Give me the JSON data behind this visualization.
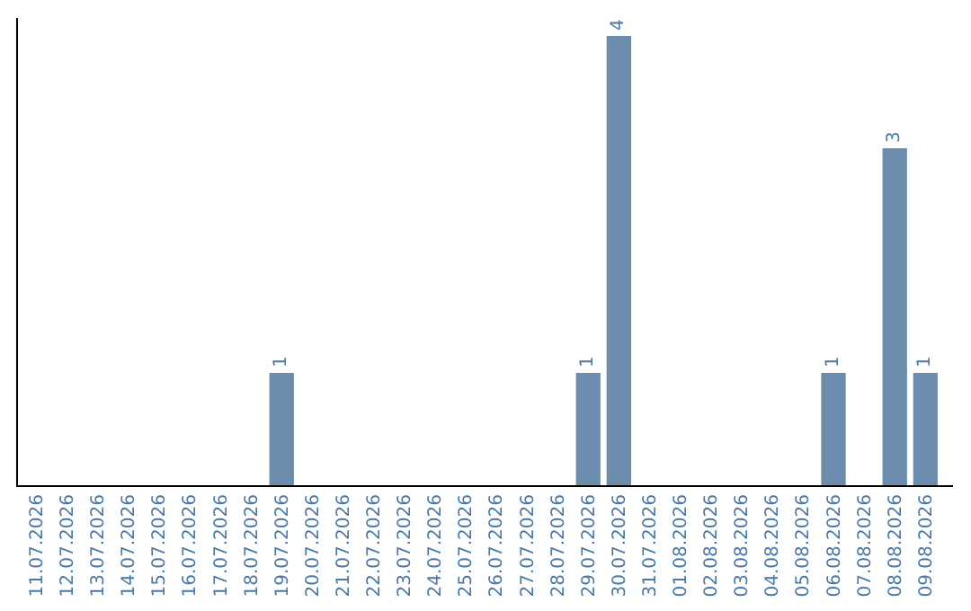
{
  "chart_data": {
    "type": "bar",
    "categories": [
      "11.07.2026",
      "12.07.2026",
      "13.07.2026",
      "14.07.2026",
      "15.07.2026",
      "16.07.2026",
      "17.07.2026",
      "18.07.2026",
      "19.07.2026",
      "20.07.2026",
      "21.07.2026",
      "22.07.2026",
      "23.07.2026",
      "24.07.2026",
      "25.07.2026",
      "26.07.2026",
      "27.07.2026",
      "28.07.2026",
      "29.07.2026",
      "30.07.2026",
      "31.07.2026",
      "01.08.2026",
      "02.08.2026",
      "03.08.2026",
      "04.08.2026",
      "05.08.2026",
      "06.08.2026",
      "07.08.2026",
      "08.08.2026",
      "09.08.2026"
    ],
    "values": [
      0,
      0,
      0,
      0,
      0,
      0,
      0,
      0,
      1,
      0,
      0,
      0,
      0,
      0,
      0,
      0,
      0,
      0,
      1,
      4,
      0,
      0,
      0,
      0,
      0,
      0,
      1,
      0,
      3,
      1
    ],
    "value_labels": [
      null,
      null,
      null,
      null,
      null,
      null,
      null,
      null,
      "1",
      null,
      null,
      null,
      null,
      null,
      null,
      null,
      null,
      null,
      "1",
      "4",
      null,
      null,
      null,
      null,
      null,
      null,
      "1",
      null,
      "3",
      "1"
    ],
    "color": "#6b8cac",
    "tick_labels": "x",
    "legend": false
  }
}
